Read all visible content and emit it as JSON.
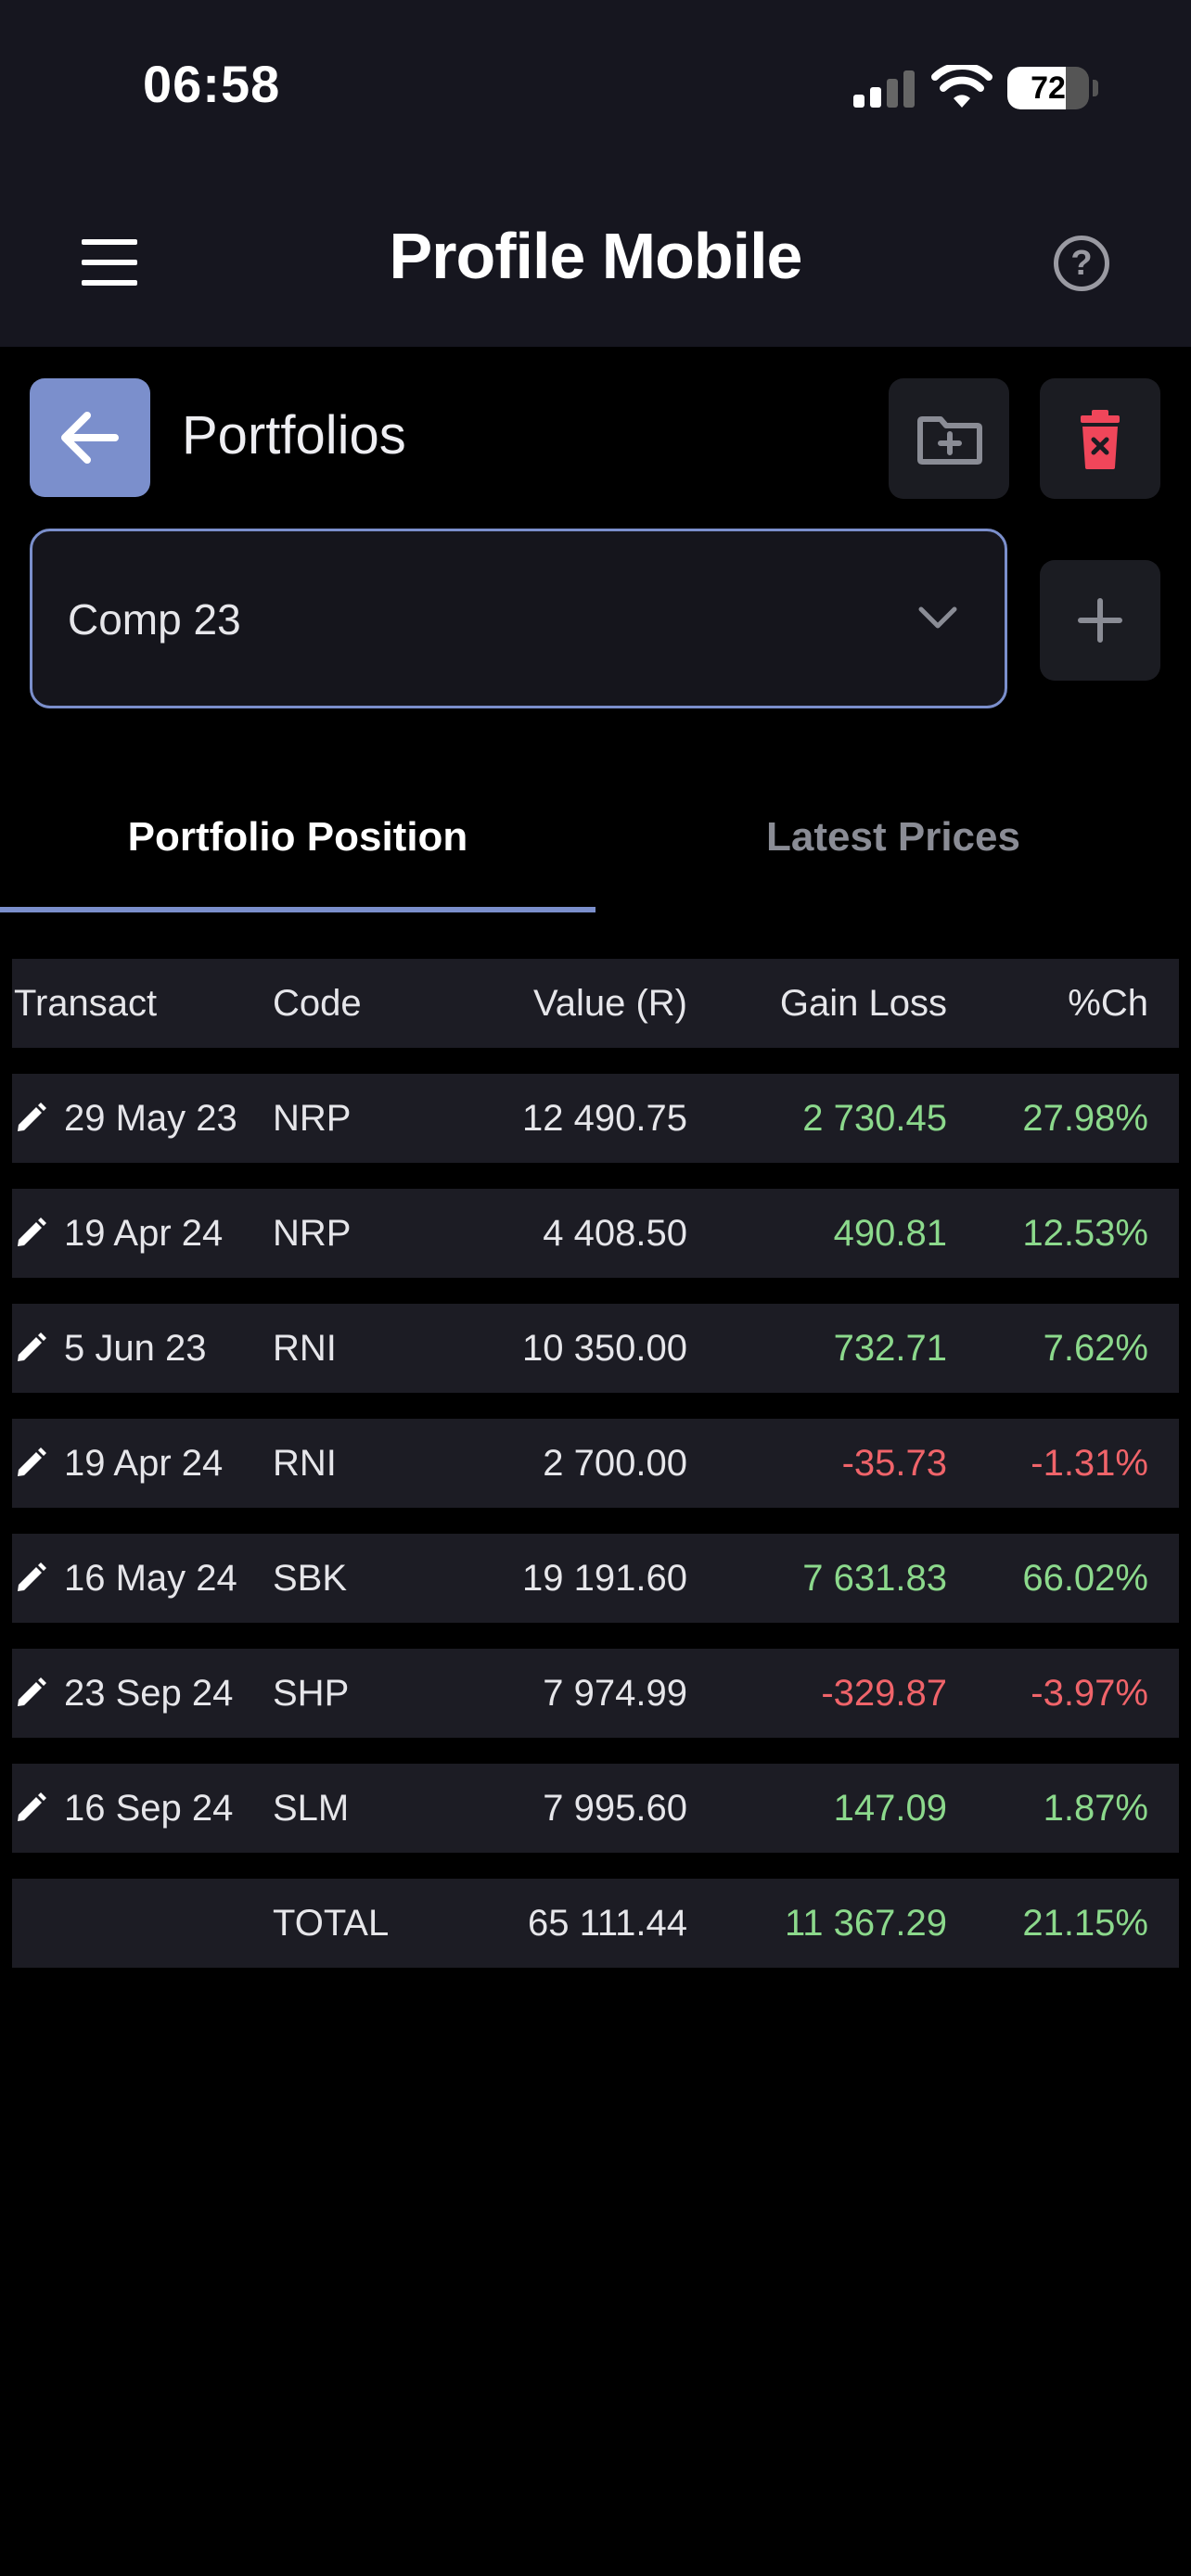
{
  "status_bar": {
    "time": "06:58",
    "battery": "72",
    "battery_level": 0.72
  },
  "header": {
    "title": "Profile Mobile",
    "menu_icon": "hamburger-menu-icon",
    "help_icon": "question-circle-icon",
    "help_glyph": "?"
  },
  "toolbar": {
    "title": "Portfolios",
    "back_icon": "arrow-left-icon",
    "new_folder_icon": "folder-plus-icon",
    "delete_icon": "trash-x-icon",
    "add_icon": "plus-icon"
  },
  "portfolio_select": {
    "value": "Comp 23"
  },
  "tabs": [
    {
      "label": "Portfolio Position",
      "active": true
    },
    {
      "label": "Latest Prices",
      "active": false
    }
  ],
  "table": {
    "columns": [
      "Transact",
      "Code",
      "Value (R)",
      "Gain Loss",
      "%Ch"
    ],
    "rows": [
      {
        "date": "29 May 23",
        "code": "NRP",
        "value": "12 490.75",
        "gain": "2 730.45",
        "pct": "27.98%",
        "trend": "pos"
      },
      {
        "date": "19 Apr 24",
        "code": "NRP",
        "value": "4 408.50",
        "gain": "490.81",
        "pct": "12.53%",
        "trend": "pos"
      },
      {
        "date": "5 Jun 23",
        "code": "RNI",
        "value": "10 350.00",
        "gain": "732.71",
        "pct": "7.62%",
        "trend": "pos"
      },
      {
        "date": "19 Apr 24",
        "code": "RNI",
        "value": "2 700.00",
        "gain": "-35.73",
        "pct": "-1.31%",
        "trend": "neg"
      },
      {
        "date": "16 May 24",
        "code": "SBK",
        "value": "19 191.60",
        "gain": "7 631.83",
        "pct": "66.02%",
        "trend": "pos"
      },
      {
        "date": "23 Sep 24",
        "code": "SHP",
        "value": "7 974.99",
        "gain": "-329.87",
        "pct": "-3.97%",
        "trend": "neg"
      },
      {
        "date": "16 Sep 24",
        "code": "SLM",
        "value": "7 995.60",
        "gain": "147.09",
        "pct": "1.87%",
        "trend": "pos"
      }
    ],
    "total": {
      "label": "TOTAL",
      "value": "65 111.44",
      "gain": "11 367.29",
      "pct": "21.15%"
    }
  },
  "colors": {
    "accent": "#7b8fcc",
    "positive": "#8cd98c",
    "negative": "#f0646a",
    "delete": "#f0465a",
    "row_bg": "#1c1c24",
    "header_bg": "#16161f"
  }
}
